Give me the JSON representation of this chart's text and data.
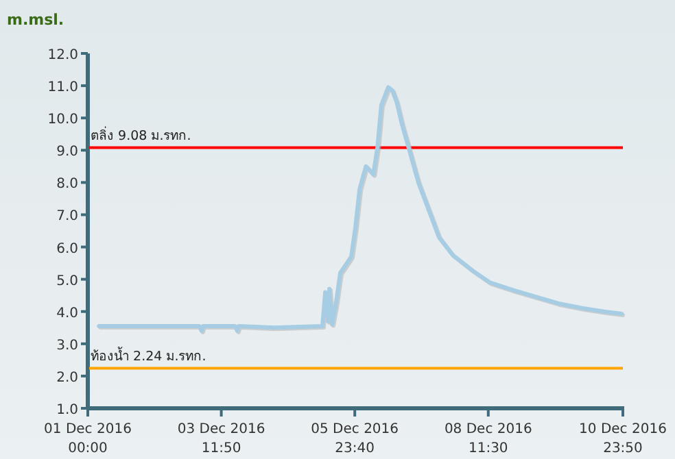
{
  "chart_data": {
    "type": "line",
    "ylabel": "m.msl.",
    "xlim": [
      "2016-12-01T00:00",
      "2016-12-10T23:50"
    ],
    "xticks": [
      {
        "value": "2016-12-01T00:00",
        "label": "01 Dec 2016 00:00"
      },
      {
        "value": "2016-12-03T11:50",
        "label": "03 Dec 2016 11:50"
      },
      {
        "value": "2016-12-05T23:40",
        "label": "05 Dec 2016 23:40"
      },
      {
        "value": "2016-12-08T11:30",
        "label": "08 Dec 2016 11:30"
      },
      {
        "value": "2016-12-10T23:50",
        "label": "10 Dec 2016 23:50"
      }
    ],
    "ylim": [
      1,
      12
    ],
    "yticks": [
      {
        "value": 1,
        "label": "1.0"
      },
      {
        "value": 2,
        "label": "2.0"
      },
      {
        "value": 3,
        "label": "3.0"
      },
      {
        "value": 4,
        "label": "4.0"
      },
      {
        "value": 5,
        "label": "5.0"
      },
      {
        "value": 6,
        "label": "6.0"
      },
      {
        "value": 7,
        "label": "7.0"
      },
      {
        "value": 8,
        "label": "8.0"
      },
      {
        "value": 9,
        "label": "9.0"
      },
      {
        "value": 10,
        "label": "10.0"
      },
      {
        "value": 11,
        "label": "11.0"
      },
      {
        "value": 12,
        "label": "12.0"
      }
    ],
    "grid": false,
    "marker": "none",
    "line_style": "solid",
    "series": [
      {
        "color": "#a6cde3",
        "x": [
          "2016-12-01T05:00",
          "2016-12-01T22:00",
          "2016-12-03T02:00",
          "2016-12-03T03:00",
          "2016-12-03T03:40",
          "2016-12-03T18:00",
          "2016-12-03T19:00",
          "2016-12-03T19:40",
          "2016-12-04T11:40",
          "2016-12-05T09:10",
          "2016-12-05T10:25",
          "2016-12-05T11:40",
          "2016-12-05T12:15",
          "2016-12-05T13:30",
          "2016-12-05T15:20",
          "2016-12-05T17:10",
          "2016-12-05T19:40",
          "2016-12-05T22:05",
          "2016-12-05T23:55",
          "2016-12-06T01:50",
          "2016-12-06T04:40",
          "2016-12-06T08:00",
          "2016-12-06T09:50",
          "2016-12-06T11:35",
          "2016-12-06T14:40",
          "2016-12-06T16:30",
          "2016-12-06T18:25",
          "2016-12-06T20:50",
          "2016-12-06T23:55",
          "2016-12-07T04:10",
          "2016-12-07T13:25",
          "2016-12-07T19:35",
          "2016-12-08T04:50",
          "2016-12-08T12:10",
          "2016-12-08T23:15",
          "2016-12-09T11:35",
          "2016-12-09T18:55",
          "2016-12-10T06:00",
          "2016-12-10T15:15",
          "2016-12-10T23:15"
        ],
        "values": [
          3.55,
          3.55,
          3.55,
          3.4,
          3.55,
          3.55,
          3.4,
          3.55,
          3.5,
          3.55,
          4.6,
          3.7,
          4.7,
          3.6,
          4.3,
          5.2,
          5.45,
          5.7,
          6.6,
          7.8,
          8.5,
          8.25,
          9.1,
          10.4,
          10.95,
          10.85,
          10.5,
          9.8,
          9.05,
          8.0,
          6.3,
          5.75,
          5.25,
          4.9,
          4.65,
          4.4,
          4.25,
          4.1,
          4.0,
          3.93
        ]
      }
    ],
    "ref_lines": [
      {
        "axis": "y",
        "value": 9.08,
        "label": "ตลิ่ง 9.08 ม.รทก.",
        "color": "#ff0000"
      },
      {
        "axis": "y",
        "value": 2.24,
        "label": "ท้องน้ำ 2.24 ม.รทก.",
        "color": "#ffa500"
      }
    ]
  }
}
